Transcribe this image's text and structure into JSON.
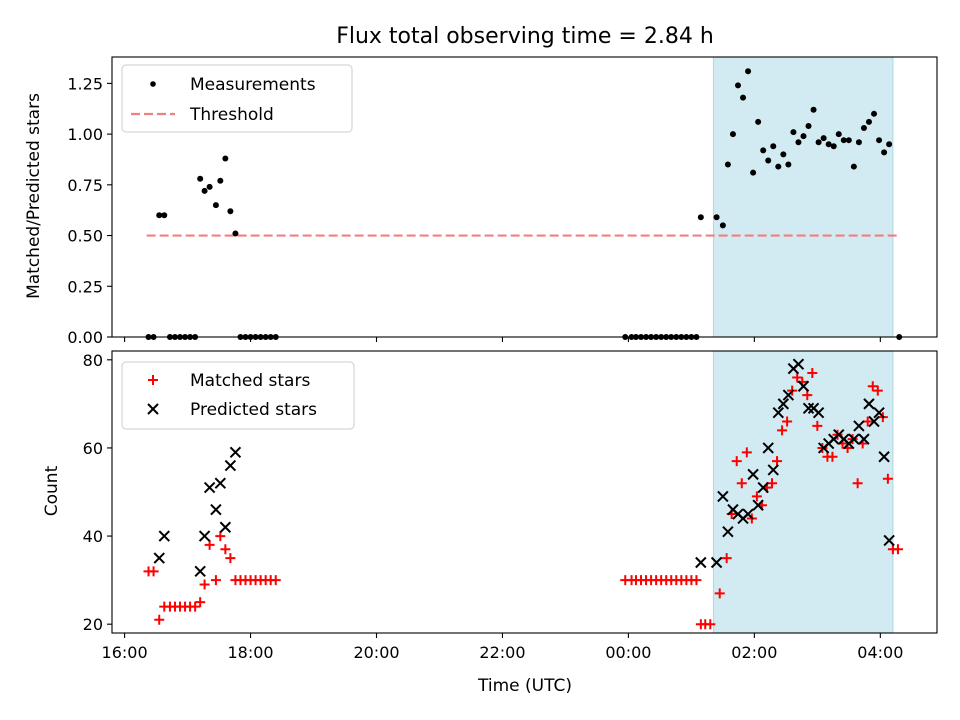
{
  "title": "Flux total observing time = 2.84 h",
  "chart_data": [
    {
      "type": "scatter",
      "ylabel": "Matched/Predicted stars",
      "xlim": [
        15.8,
        28.9
      ],
      "ylim": [
        0,
        1.38
      ],
      "yticks": [
        0.0,
        0.25,
        0.5,
        0.75,
        1.0,
        1.25
      ],
      "ytick_labels": [
        "0.00",
        "0.25",
        "0.50",
        "0.75",
        "1.00",
        "1.25"
      ],
      "highlight_span": [
        25.35,
        28.2
      ],
      "legend": {
        "placement": "upper-left",
        "entries": [
          "Measurements",
          "Threshold"
        ]
      },
      "threshold": {
        "name": "Threshold",
        "value": 0.5,
        "x_range": [
          16.35,
          28.3
        ],
        "color": "#f08080"
      },
      "series": [
        {
          "name": "Measurements",
          "marker": "dot",
          "color": "#000000",
          "points": [
            [
              16.38,
              0.0
            ],
            [
              16.46,
              0.0
            ],
            [
              16.55,
              0.6
            ],
            [
              16.63,
              0.6
            ],
            [
              16.72,
              0.0
            ],
            [
              16.8,
              0.0
            ],
            [
              16.88,
              0.0
            ],
            [
              16.96,
              0.0
            ],
            [
              17.04,
              0.0
            ],
            [
              17.12,
              0.0
            ],
            [
              17.2,
              0.78
            ],
            [
              17.27,
              0.72
            ],
            [
              17.35,
              0.74
            ],
            [
              17.45,
              0.65
            ],
            [
              17.52,
              0.77
            ],
            [
              17.6,
              0.88
            ],
            [
              17.68,
              0.62
            ],
            [
              17.76,
              0.51
            ],
            [
              17.84,
              0.0
            ],
            [
              17.92,
              0.0
            ],
            [
              18.0,
              0.0
            ],
            [
              18.08,
              0.0
            ],
            [
              18.16,
              0.0
            ],
            [
              18.24,
              0.0
            ],
            [
              18.32,
              0.0
            ],
            [
              18.4,
              0.0
            ],
            [
              23.95,
              0.0
            ],
            [
              24.05,
              0.0
            ],
            [
              24.12,
              0.0
            ],
            [
              24.2,
              0.0
            ],
            [
              24.28,
              0.0
            ],
            [
              24.36,
              0.0
            ],
            [
              24.44,
              0.0
            ],
            [
              24.52,
              0.0
            ],
            [
              24.6,
              0.0
            ],
            [
              24.68,
              0.0
            ],
            [
              24.76,
              0.0
            ],
            [
              24.84,
              0.0
            ],
            [
              24.92,
              0.0
            ],
            [
              25.0,
              0.0
            ],
            [
              25.08,
              0.0
            ],
            [
              25.15,
              0.59
            ],
            [
              25.4,
              0.59
            ],
            [
              25.5,
              0.55
            ],
            [
              25.58,
              0.85
            ],
            [
              25.66,
              1.0
            ],
            [
              25.74,
              1.24
            ],
            [
              25.82,
              1.18
            ],
            [
              25.9,
              1.31
            ],
            [
              25.98,
              0.81
            ],
            [
              26.06,
              1.06
            ],
            [
              26.14,
              0.92
            ],
            [
              26.22,
              0.87
            ],
            [
              26.3,
              0.94
            ],
            [
              26.38,
              0.84
            ],
            [
              26.46,
              0.9
            ],
            [
              26.54,
              0.85
            ],
            [
              26.62,
              1.01
            ],
            [
              26.7,
              0.96
            ],
            [
              26.78,
              0.99
            ],
            [
              26.86,
              1.04
            ],
            [
              26.94,
              1.12
            ],
            [
              27.02,
              0.96
            ],
            [
              27.1,
              0.98
            ],
            [
              27.18,
              0.95
            ],
            [
              27.26,
              0.94
            ],
            [
              27.34,
              1.0
            ],
            [
              27.42,
              0.97
            ],
            [
              27.5,
              0.97
            ],
            [
              27.58,
              0.84
            ],
            [
              27.66,
              0.96
            ],
            [
              27.74,
              1.03
            ],
            [
              27.82,
              1.06
            ],
            [
              27.9,
              1.1
            ],
            [
              27.98,
              0.97
            ],
            [
              28.06,
              0.91
            ],
            [
              28.14,
              0.95
            ],
            [
              28.3,
              0.0
            ]
          ]
        }
      ]
    },
    {
      "type": "scatter",
      "ylabel": "Count",
      "xlabel": "Time (UTC)",
      "xlim": [
        15.8,
        28.9
      ],
      "ylim": [
        18,
        82
      ],
      "yticks": [
        20,
        40,
        60,
        80
      ],
      "ytick_labels": [
        "20",
        "40",
        "60",
        "80"
      ],
      "xticks": [
        16,
        18,
        20,
        22,
        24,
        26,
        28
      ],
      "xtick_labels": [
        "16:00",
        "18:00",
        "20:00",
        "22:00",
        "00:00",
        "02:00",
        "04:00"
      ],
      "highlight_span": [
        25.35,
        28.2
      ],
      "legend": {
        "placement": "upper-left",
        "entries": [
          "Matched stars",
          "Predicted stars"
        ]
      },
      "series": [
        {
          "name": "Matched stars",
          "marker": "plus",
          "color": "#ff0000",
          "points": [
            [
              16.38,
              32
            ],
            [
              16.46,
              32
            ],
            [
              16.55,
              21
            ],
            [
              16.63,
              24
            ],
            [
              16.72,
              24
            ],
            [
              16.8,
              24
            ],
            [
              16.88,
              24
            ],
            [
              16.96,
              24
            ],
            [
              17.04,
              24
            ],
            [
              17.12,
              24
            ],
            [
              17.2,
              25
            ],
            [
              17.27,
              29
            ],
            [
              17.35,
              38
            ],
            [
              17.45,
              30
            ],
            [
              17.52,
              40
            ],
            [
              17.6,
              37
            ],
            [
              17.68,
              35
            ],
            [
              17.76,
              30
            ],
            [
              17.84,
              30
            ],
            [
              17.92,
              30
            ],
            [
              18.0,
              30
            ],
            [
              18.08,
              30
            ],
            [
              18.16,
              30
            ],
            [
              18.24,
              30
            ],
            [
              18.32,
              30
            ],
            [
              18.4,
              30
            ],
            [
              23.95,
              30
            ],
            [
              24.05,
              30
            ],
            [
              24.12,
              30
            ],
            [
              24.2,
              30
            ],
            [
              24.28,
              30
            ],
            [
              24.36,
              30
            ],
            [
              24.44,
              30
            ],
            [
              24.52,
              30
            ],
            [
              24.6,
              30
            ],
            [
              24.68,
              30
            ],
            [
              24.76,
              30
            ],
            [
              24.84,
              30
            ],
            [
              24.92,
              30
            ],
            [
              25.0,
              30
            ],
            [
              25.08,
              30
            ],
            [
              25.15,
              20
            ],
            [
              25.22,
              20
            ],
            [
              25.3,
              20
            ],
            [
              25.45,
              27
            ],
            [
              25.56,
              35
            ],
            [
              25.64,
              45
            ],
            [
              25.72,
              57
            ],
            [
              25.8,
              52
            ],
            [
              25.88,
              59
            ],
            [
              25.96,
              44
            ],
            [
              26.04,
              49
            ],
            [
              26.12,
              47
            ],
            [
              26.2,
              51
            ],
            [
              26.28,
              52
            ],
            [
              26.36,
              57
            ],
            [
              26.44,
              64
            ],
            [
              26.52,
              66
            ],
            [
              26.6,
              73
            ],
            [
              26.68,
              76
            ],
            [
              26.76,
              75
            ],
            [
              26.84,
              72
            ],
            [
              26.92,
              77
            ],
            [
              27.0,
              65
            ],
            [
              27.08,
              60
            ],
            [
              27.16,
              58
            ],
            [
              27.24,
              58
            ],
            [
              27.32,
              63
            ],
            [
              27.4,
              61
            ],
            [
              27.48,
              60
            ],
            [
              27.56,
              62
            ],
            [
              27.64,
              52
            ],
            [
              27.72,
              61
            ],
            [
              27.8,
              66
            ],
            [
              27.88,
              74
            ],
            [
              27.96,
              73
            ],
            [
              28.04,
              67
            ],
            [
              28.12,
              53
            ],
            [
              28.2,
              37
            ],
            [
              28.28,
              37
            ]
          ]
        },
        {
          "name": "Predicted stars",
          "marker": "x",
          "color": "#000000",
          "points": [
            [
              16.55,
              35
            ],
            [
              16.63,
              40
            ],
            [
              17.2,
              32
            ],
            [
              17.27,
              40
            ],
            [
              17.35,
              51
            ],
            [
              17.45,
              46
            ],
            [
              17.52,
              52
            ],
            [
              17.6,
              42
            ],
            [
              17.68,
              56
            ],
            [
              17.76,
              59
            ],
            [
              25.15,
              34
            ],
            [
              25.4,
              34
            ],
            [
              25.5,
              49
            ],
            [
              25.58,
              41
            ],
            [
              25.66,
              46
            ],
            [
              25.74,
              45
            ],
            [
              25.82,
              44
            ],
            [
              25.9,
              45
            ],
            [
              25.98,
              54
            ],
            [
              26.06,
              47
            ],
            [
              26.14,
              51
            ],
            [
              26.22,
              60
            ],
            [
              26.3,
              55
            ],
            [
              26.38,
              68
            ],
            [
              26.46,
              70
            ],
            [
              26.54,
              72
            ],
            [
              26.62,
              78
            ],
            [
              26.7,
              79
            ],
            [
              26.78,
              74
            ],
            [
              26.86,
              69
            ],
            [
              26.94,
              69
            ],
            [
              27.02,
              68
            ],
            [
              27.1,
              60
            ],
            [
              27.18,
              61
            ],
            [
              27.26,
              62
            ],
            [
              27.34,
              63
            ],
            [
              27.42,
              62
            ],
            [
              27.5,
              61
            ],
            [
              27.58,
              62
            ],
            [
              27.66,
              65
            ],
            [
              27.74,
              62
            ],
            [
              27.82,
              70
            ],
            [
              27.9,
              66
            ],
            [
              27.98,
              68
            ],
            [
              28.06,
              58
            ],
            [
              28.14,
              39
            ]
          ]
        }
      ]
    }
  ]
}
